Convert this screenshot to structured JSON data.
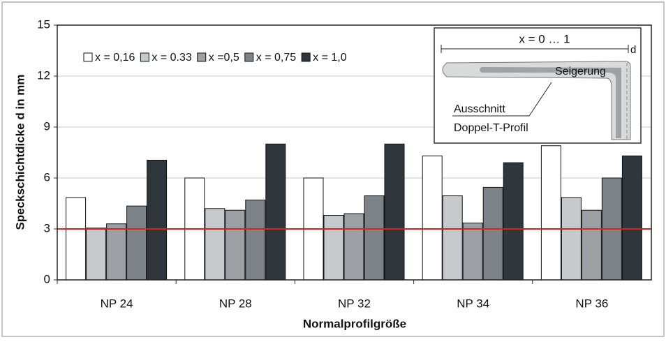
{
  "chart_data": {
    "type": "bar",
    "y_label": "Speckschichtdicke d in mm",
    "x_label": "Normalprofilgröße",
    "categories": [
      "NP 24",
      "NP 28",
      "NP 32",
      "NP 34",
      "NP 36"
    ],
    "series": [
      {
        "name": "x = 0,16",
        "color": "#ffffff",
        "values": [
          4.85,
          6.0,
          6.0,
          7.3,
          7.9
        ]
      },
      {
        "name": "x = 0.33",
        "color": "#c6cacd",
        "values": [
          3.05,
          4.2,
          3.8,
          4.95,
          4.85
        ]
      },
      {
        "name": "x =0,5",
        "color": "#9ca0a4",
        "values": [
          3.3,
          4.1,
          3.9,
          3.35,
          4.1
        ]
      },
      {
        "name": "x = 0,75",
        "color": "#7e8388",
        "values": [
          4.35,
          4.7,
          4.95,
          5.45,
          6.0
        ]
      },
      {
        "name": "x = 1,0",
        "color": "#30373c",
        "values": [
          7.05,
          8.0,
          8.0,
          6.9,
          7.3
        ]
      }
    ],
    "ylim": [
      0,
      15
    ],
    "yticks": [
      0,
      3,
      6,
      9,
      12,
      15
    ],
    "grid": true,
    "ref_line": 3,
    "ref_color": "#e0201b",
    "inset": {
      "range_label": "x = 0 … 1",
      "d_label": "d",
      "seigerung": "Seigerung",
      "ausschnitt": "Ausschnitt",
      "profil": "Doppel-T-Profil"
    }
  }
}
